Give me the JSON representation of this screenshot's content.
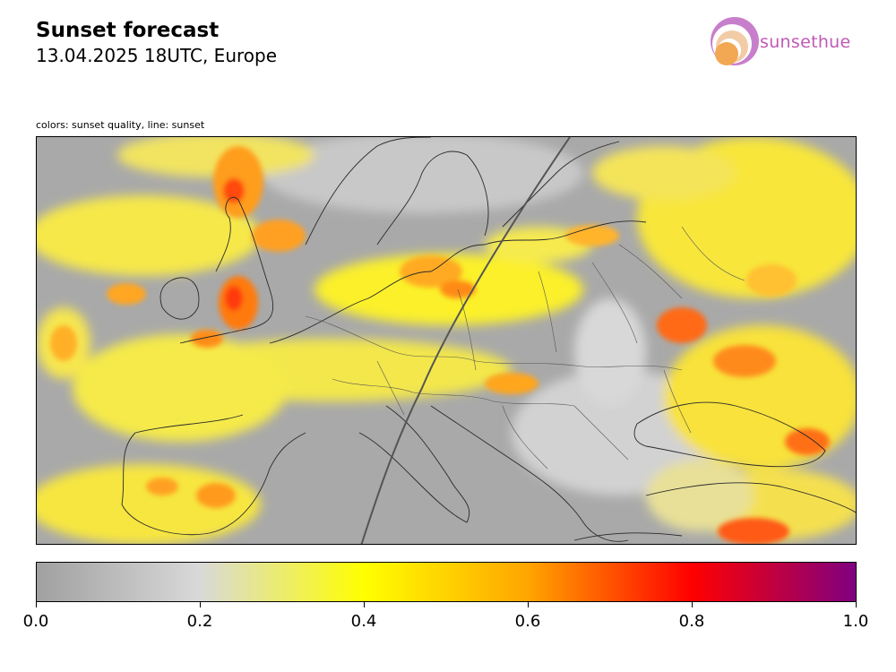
{
  "header": {
    "title": "Sunset forecast",
    "subtitle": "13.04.2025 18UTC, Europe"
  },
  "logo": {
    "text": "sunsethue"
  },
  "map": {
    "caption": "colors: sunset quality, line: sunset"
  },
  "colorbar": {
    "range": [
      0.0,
      1.0
    ],
    "tick_labels": [
      "0.0",
      "0.2",
      "0.4",
      "0.6",
      "0.8",
      "1.0"
    ],
    "colors": [
      "#a0a0a0",
      "#d9d9d9",
      "#ffff00",
      "#ffa500",
      "#ff0000",
      "#800080"
    ]
  }
}
